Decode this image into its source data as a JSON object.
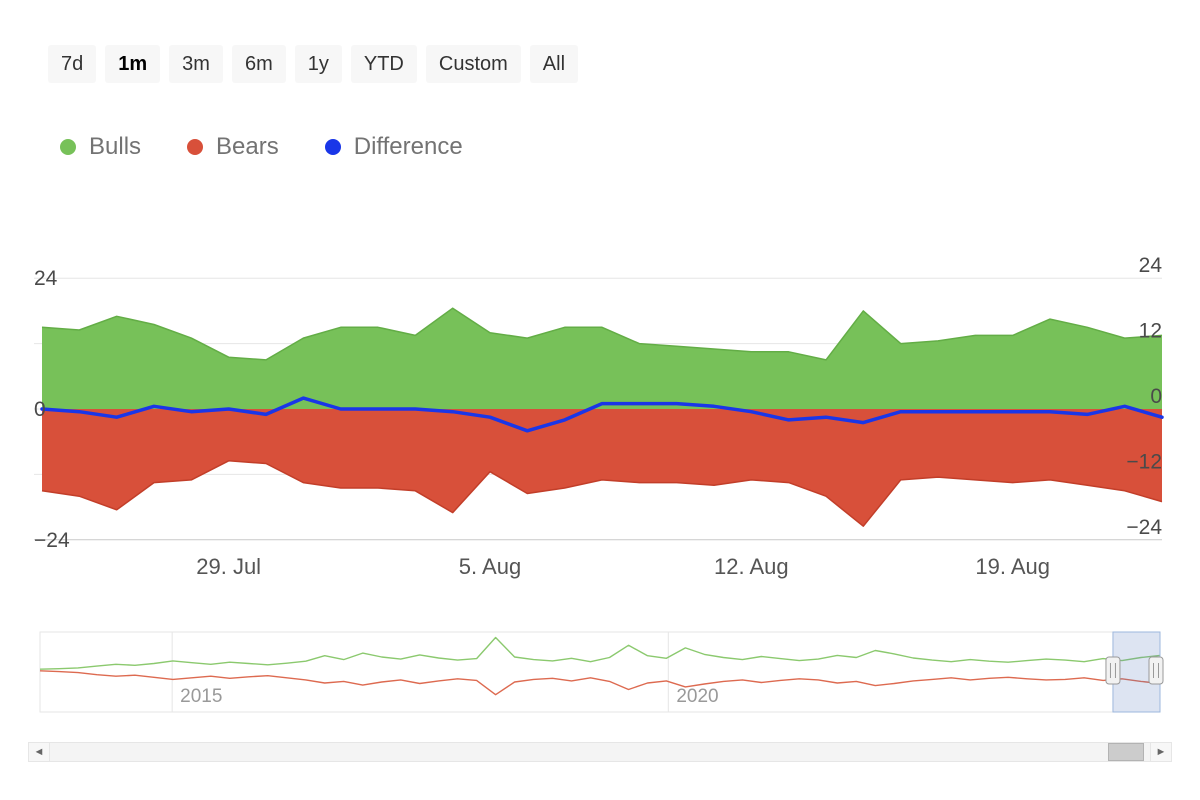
{
  "range_selector": {
    "buttons": [
      {
        "label": "7d",
        "selected": false
      },
      {
        "label": "1m",
        "selected": true
      },
      {
        "label": "3m",
        "selected": false
      },
      {
        "label": "6m",
        "selected": false
      },
      {
        "label": "1y",
        "selected": false
      },
      {
        "label": "YTD",
        "selected": false
      },
      {
        "label": "Custom",
        "selected": false
      },
      {
        "label": "All",
        "selected": false
      }
    ]
  },
  "legend": {
    "items": [
      {
        "label": "Bulls",
        "color": "#77c159"
      },
      {
        "label": "Bears",
        "color": "#d8503a"
      },
      {
        "label": "Difference",
        "color": "#1a36e8"
      }
    ]
  },
  "chart_data": [
    {
      "type": "area",
      "title": "",
      "xlabel": "",
      "ylabel": "",
      "grid": true,
      "ylim": [
        -26,
        26
      ],
      "yticks_left": [
        24,
        0,
        -24
      ],
      "yticks_right": [
        24,
        12,
        0,
        -12,
        -24
      ],
      "dates": [
        "24. Jul",
        "25. Jul",
        "26. Jul",
        "27. Jul",
        "28. Jul",
        "29. Jul",
        "30. Jul",
        "31. Jul",
        "1. Aug",
        "2. Aug",
        "3. Aug",
        "4. Aug",
        "5. Aug",
        "6. Aug",
        "7. Aug",
        "8. Aug",
        "9. Aug",
        "10. Aug",
        "11. Aug",
        "12. Aug",
        "13. Aug",
        "14. Aug",
        "15. Aug",
        "16. Aug",
        "17. Aug",
        "18. Aug",
        "19. Aug",
        "20. Aug",
        "21. Aug",
        "22. Aug",
        "23. Aug"
      ],
      "xticks": [
        {
          "index": 5,
          "label": "29. Jul"
        },
        {
          "index": 12,
          "label": "5. Aug"
        },
        {
          "index": 19,
          "label": "12. Aug"
        },
        {
          "index": 26,
          "label": "19. Aug"
        }
      ],
      "series": [
        {
          "name": "Bulls",
          "type": "area",
          "color": "#77c159",
          "line_color": "#63ad46",
          "values": [
            15,
            14.5,
            17,
            15.5,
            13,
            9.5,
            9,
            13,
            15,
            15,
            13.5,
            18.5,
            14,
            13,
            15,
            15,
            12,
            11.5,
            11,
            10.5,
            10.5,
            9,
            18,
            12,
            12.5,
            13.5,
            13.5,
            16.5,
            15,
            13,
            13.5
          ]
        },
        {
          "name": "Bears",
          "type": "area",
          "color": "#d8503a",
          "line_color": "#c23e29",
          "values": [
            -15,
            -16,
            -18.5,
            -13.5,
            -13,
            -9.5,
            -10,
            -13.5,
            -14.5,
            -14.5,
            -15,
            -19,
            -11.5,
            -15.5,
            -14.5,
            -13,
            -13.5,
            -13.5,
            -14,
            -13,
            -13.5,
            -16,
            -21.5,
            -13,
            -12.5,
            -13,
            -13.5,
            -13,
            -14,
            -15,
            -17
          ]
        },
        {
          "name": "Difference",
          "type": "line",
          "color": "#1a36e8",
          "values": [
            0,
            -0.5,
            -1.5,
            0.5,
            -0.5,
            0,
            -1,
            2,
            0,
            0,
            0,
            -0.5,
            -1.5,
            -4,
            -2,
            1,
            1,
            1,
            0.5,
            -0.5,
            -2,
            -1.5,
            -2.5,
            -0.5,
            -0.5,
            -0.5,
            -0.5,
            -0.5,
            -1,
            0.5,
            -1.5
          ]
        }
      ]
    },
    {
      "type": "line",
      "role": "navigator",
      "ylim": [
        -12,
        15
      ],
      "xticks": [
        {
          "pos": 0.118,
          "label": "2015"
        },
        {
          "pos": 0.561,
          "label": "2020"
        }
      ],
      "selected_range": [
        0.958,
        1.0
      ],
      "series": [
        {
          "name": "Bulls",
          "color": "#8bc96e",
          "values": [
            0.3,
            0.5,
            0.8,
            1.5,
            2.2,
            1.8,
            2.5,
            3.5,
            2.8,
            2.2,
            3.0,
            2.5,
            2.0,
            2.6,
            3.4,
            5.5,
            4.0,
            6.5,
            5.0,
            4.2,
            5.8,
            4.6,
            3.8,
            4.4,
            12.5,
            5.0,
            4.0,
            3.5,
            4.5,
            3.2,
            4.8,
            9.5,
            5.5,
            4.5,
            8.5,
            6.0,
            4.8,
            4.0,
            5.2,
            4.4,
            3.6,
            4.2,
            5.6,
            4.8,
            7.5,
            6.2,
            4.6,
            3.8,
            3.2,
            4.0,
            3.4,
            3.0,
            3.6,
            4.2,
            3.8,
            3.2,
            4.4,
            3.6,
            4.8,
            5.6
          ]
        },
        {
          "name": "Bears",
          "color": "#dd6a50",
          "values": [
            -0.3,
            -0.6,
            -1.0,
            -1.8,
            -2.4,
            -2.0,
            -2.8,
            -3.6,
            -3.0,
            -2.4,
            -3.2,
            -2.6,
            -2.2,
            -3.0,
            -3.8,
            -5.0,
            -4.4,
            -5.8,
            -4.6,
            -3.8,
            -5.2,
            -4.2,
            -3.4,
            -4.0,
            -9.5,
            -4.6,
            -3.6,
            -3.2,
            -4.2,
            -3.0,
            -4.4,
            -7.5,
            -5.0,
            -4.2,
            -6.5,
            -5.4,
            -4.4,
            -3.8,
            -4.8,
            -4.0,
            -3.4,
            -3.8,
            -5.0,
            -4.4,
            -6.0,
            -5.2,
            -4.2,
            -3.6,
            -3.0,
            -3.8,
            -3.2,
            -2.8,
            -3.4,
            -3.8,
            -3.6,
            -3.0,
            -4.0,
            -3.4,
            -4.4,
            -5.2
          ]
        }
      ]
    }
  ],
  "scrollbar": {
    "left_arrow": "◄",
    "right_arrow": "►",
    "thumb_left_pct": 96.2,
    "thumb_width_pct": 3.3
  }
}
